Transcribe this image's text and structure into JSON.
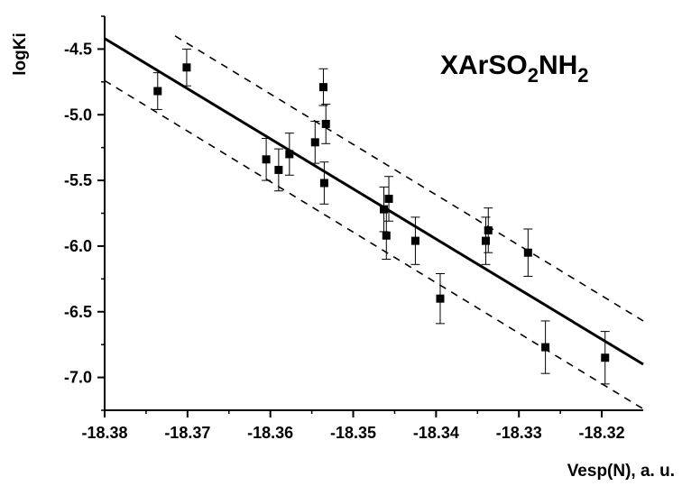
{
  "chart_data": {
    "type": "scatter",
    "annotation": {
      "parts": [
        "XArSO",
        "2",
        "NH",
        "2"
      ]
    },
    "xlabel": "Vesp(N), a. u.",
    "ylabel": "logKi",
    "xlim": [
      -18.38,
      -18.315
    ],
    "ylim": [
      -7.25,
      -4.25
    ],
    "xticks": [
      -18.38,
      -18.37,
      -18.36,
      -18.35,
      -18.34,
      -18.33,
      -18.32
    ],
    "xtick_labels": [
      "-18.38",
      "-18.37",
      "-18.36",
      "-18.35",
      "-18.34",
      "-18.33",
      "-18.32"
    ],
    "yticks": [
      -4.5,
      -5.0,
      -5.5,
      -6.0,
      -6.5,
      -7.0
    ],
    "ytick_labels": [
      "-4.5",
      "-5.0",
      "-5.5",
      "-6.0",
      "-6.5",
      "-7.0"
    ],
    "grid": false,
    "points": [
      {
        "x": -18.3736,
        "y": -4.82,
        "err": 0.14
      },
      {
        "x": -18.3701,
        "y": -4.64,
        "err": 0.14
      },
      {
        "x": -18.3605,
        "y": -5.34,
        "err": 0.16
      },
      {
        "x": -18.359,
        "y": -5.42,
        "err": 0.16
      },
      {
        "x": -18.3577,
        "y": -5.3,
        "err": 0.16
      },
      {
        "x": -18.3546,
        "y": -5.21,
        "err": 0.16
      },
      {
        "x": -18.3536,
        "y": -4.79,
        "err": 0.14
      },
      {
        "x": -18.3533,
        "y": -5.07,
        "err": 0.15
      },
      {
        "x": -18.3535,
        "y": -5.52,
        "err": 0.16
      },
      {
        "x": -18.3463,
        "y": -5.72,
        "err": 0.17
      },
      {
        "x": -18.3457,
        "y": -5.64,
        "err": 0.17
      },
      {
        "x": -18.346,
        "y": -5.92,
        "err": 0.18
      },
      {
        "x": -18.3425,
        "y": -5.96,
        "err": 0.18
      },
      {
        "x": -18.3395,
        "y": -6.4,
        "err": 0.19
      },
      {
        "x": -18.334,
        "y": -5.96,
        "err": 0.18
      },
      {
        "x": -18.3337,
        "y": -5.88,
        "err": 0.17
      },
      {
        "x": -18.3289,
        "y": -6.05,
        "err": 0.18
      },
      {
        "x": -18.3268,
        "y": -6.77,
        "err": 0.2
      },
      {
        "x": -18.3196,
        "y": -6.85,
        "err": 0.2
      }
    ],
    "fit_line": {
      "x": [
        -18.38,
        -18.315
      ],
      "y": [
        -4.42,
        -6.9
      ]
    },
    "confidence_upper": {
      "x": [
        -18.3715,
        -18.315
      ],
      "y": [
        -4.4,
        -6.57
      ]
    },
    "confidence_lower": {
      "x": [
        -18.38,
        -18.315
      ],
      "y": [
        -4.74,
        -7.24
      ]
    }
  }
}
